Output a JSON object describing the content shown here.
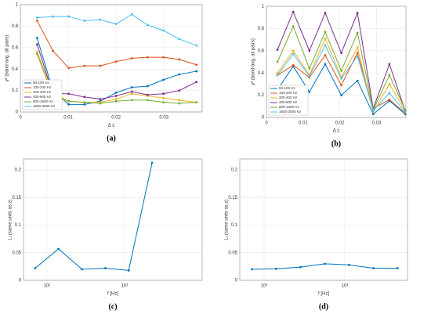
{
  "chart_data": [
    {
      "type": "line",
      "caption": "(a)",
      "xlabel": "Δ z",
      "ylabel": "γ² (band-avg. all pairs)",
      "x": [
        0.0035,
        0.0068,
        0.0101,
        0.0134,
        0.0167,
        0.02,
        0.0233,
        0.0266,
        0.0299,
        0.0332,
        0.0368
      ],
      "series": [
        {
          "name": "50-100 Hz",
          "color": "#0072BD",
          "values": [
            0.69,
            0.2,
            0.07,
            0.07,
            0.1,
            0.18,
            0.23,
            0.24,
            0.3,
            0.35,
            0.38
          ]
        },
        {
          "name": "100-200 Hz",
          "color": "#D95319",
          "values": [
            0.85,
            0.57,
            0.41,
            0.43,
            0.43,
            0.47,
            0.5,
            0.51,
            0.51,
            0.49,
            0.44
          ]
        },
        {
          "name": "200-400 Hz",
          "color": "#EDB120",
          "values": [
            0.56,
            0.18,
            0.1,
            0.09,
            0.09,
            0.12,
            0.17,
            0.15,
            0.13,
            0.11,
            0.09
          ]
        },
        {
          "name": "400-800 Hz",
          "color": "#7E2F8E",
          "values": [
            0.63,
            0.17,
            0.17,
            0.14,
            0.12,
            0.15,
            0.19,
            0.16,
            0.17,
            0.2,
            0.28
          ]
        },
        {
          "name": "800-1600 Hz",
          "color": "#77AC30",
          "values": [
            0.54,
            0.15,
            0.1,
            0.09,
            0.08,
            0.1,
            0.11,
            0.11,
            0.09,
            0.08,
            0.09
          ]
        },
        {
          "name": "1600-3000 Hz",
          "color": "#4DBEEE",
          "values": [
            0.88,
            0.89,
            0.89,
            0.85,
            0.86,
            0.82,
            0.91,
            0.81,
            0.76,
            0.68,
            0.62
          ]
        }
      ],
      "xlim": [
        0,
        0.038
      ],
      "ylim": [
        0,
        1
      ],
      "xticks": [
        0,
        0.01,
        0.02,
        0.03
      ],
      "yticks": [
        0,
        0.2,
        0.4,
        0.6,
        0.8,
        1
      ],
      "grid": true,
      "legend": "lower left"
    },
    {
      "type": "line",
      "caption": "(b)",
      "xlabel": "Δ z",
      "ylabel": "γ² (band-avg. all pairs)",
      "x": [
        0.003,
        0.0073,
        0.0117,
        0.016,
        0.0204,
        0.0248,
        0.0291,
        0.0335,
        0.0378
      ],
      "series": [
        {
          "name": "50-100 Hz",
          "color": "#0072BD",
          "values": [
            0.25,
            0.46,
            0.23,
            0.48,
            0.2,
            0.33,
            0.03,
            0.15,
            0.03
          ]
        },
        {
          "name": "100-200 Hz",
          "color": "#D95319",
          "values": [
            0.38,
            0.47,
            0.36,
            0.56,
            0.29,
            0.58,
            0.08,
            0.16,
            0.04
          ]
        },
        {
          "name": "200-400 Hz",
          "color": "#EDB120",
          "values": [
            0.4,
            0.6,
            0.38,
            0.71,
            0.36,
            0.63,
            0.05,
            0.3,
            0.06
          ]
        },
        {
          "name": "400-800 Hz",
          "color": "#7E2F8E",
          "values": [
            0.61,
            0.95,
            0.6,
            0.94,
            0.58,
            0.94,
            0.08,
            0.48,
            0.06
          ]
        },
        {
          "name": "800-1600 Hz",
          "color": "#77AC30",
          "values": [
            0.5,
            0.82,
            0.44,
            0.77,
            0.42,
            0.76,
            0.07,
            0.38,
            0.07
          ]
        },
        {
          "name": "1600-3000 Hz",
          "color": "#4DBEEE",
          "values": [
            0.38,
            0.57,
            0.37,
            0.65,
            0.35,
            0.55,
            0.06,
            0.22,
            0.05
          ]
        }
      ],
      "xlim": [
        0,
        0.038
      ],
      "ylim": [
        0,
        1
      ],
      "xticks": [
        0,
        0.01,
        0.02,
        0.03
      ],
      "yticks": [
        0,
        0.2,
        0.4,
        0.6,
        0.8,
        1
      ],
      "grid": true,
      "legend": "lower left"
    },
    {
      "type": "line",
      "caption": "(c)",
      "xlabel": "f [Hz]",
      "ylabel": "Lᵣ (same units as z)",
      "x": [
        70.7,
        141,
        283,
        566,
        1131,
        2263
      ],
      "series": [
        {
          "color": "#0072BD",
          "values": [
            0.022,
            0.057,
            0.02,
            0.022,
            0.018,
            0.213
          ]
        }
      ],
      "xscale": "log",
      "xlim": [
        50,
        10000
      ],
      "ylim": [
        0,
        0.22
      ],
      "xticks": [
        {
          "value": 100,
          "label": "10²"
        },
        {
          "value": 1000,
          "label": "10³"
        }
      ],
      "yticks": [
        0,
        0.05,
        0.1,
        0.15,
        0.2
      ],
      "grid": true
    },
    {
      "type": "line",
      "caption": "(d)",
      "xlabel": "f [Hz]",
      "ylabel": "Lᵣ (same units as z)",
      "x": [
        70.7,
        141,
        283,
        566,
        1131,
        2263,
        4525
      ],
      "series": [
        {
          "color": "#0072BD",
          "values": [
            0.02,
            0.021,
            0.024,
            0.03,
            0.028,
            0.022,
            0.022
          ]
        }
      ],
      "xscale": "log",
      "xlim": [
        50,
        6000
      ],
      "ylim": [
        0,
        0.22
      ],
      "xticks": [
        {
          "value": 100,
          "label": "10²"
        },
        {
          "value": 1000,
          "label": "10³"
        }
      ],
      "yticks": [
        0,
        0.05,
        0.1,
        0.15,
        0.2
      ],
      "grid": true
    }
  ]
}
